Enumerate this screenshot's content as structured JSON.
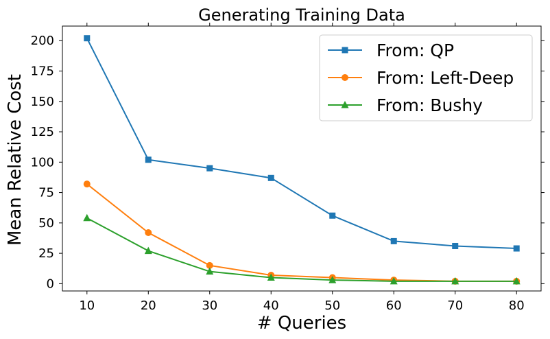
{
  "chart_data": {
    "type": "line",
    "title": "Generating Training Data",
    "xlabel": "# Queries",
    "ylabel": "Mean Relative Cost",
    "x": [
      10,
      20,
      30,
      40,
      50,
      60,
      70,
      80
    ],
    "xlim": [
      6,
      84
    ],
    "ylim": [
      -6,
      212
    ],
    "xticks": [
      10,
      20,
      30,
      40,
      50,
      60,
      70,
      80
    ],
    "yticks": [
      0,
      25,
      50,
      75,
      100,
      125,
      150,
      175,
      200
    ],
    "grid": false,
    "legend_position": "top-right",
    "series": [
      {
        "name": "From: QP",
        "color": "#1f77b4",
        "marker": "square",
        "values": [
          202,
          102,
          95,
          87,
          56,
          35,
          31,
          29
        ]
      },
      {
        "name": "From: Left-Deep",
        "color": "#ff7f0e",
        "marker": "circle",
        "values": [
          82,
          42,
          15,
          7,
          5,
          3,
          2,
          2
        ]
      },
      {
        "name": "From: Bushy",
        "color": "#2ca02c",
        "marker": "triangle",
        "values": [
          54,
          27,
          10,
          5,
          3,
          2,
          2,
          2
        ]
      }
    ]
  }
}
